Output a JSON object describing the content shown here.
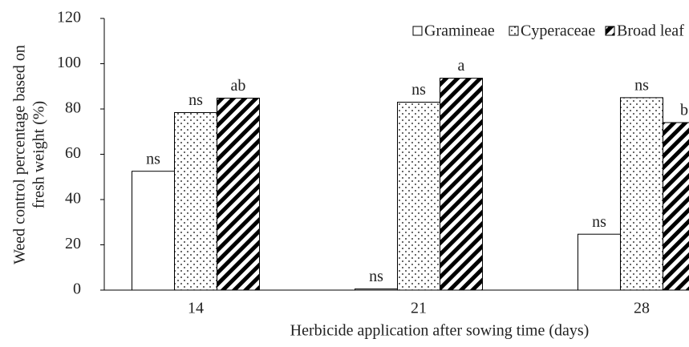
{
  "chart_data": {
    "type": "bar",
    "xlabel": "Herbicide application after sowing time (days)",
    "ylabel": [
      "Weed control percentage based on",
      "fresh weight (%)"
    ],
    "categories": [
      "14",
      "21",
      "28"
    ],
    "series": [
      {
        "name": "Gramineae",
        "color": "#000000",
        "pattern": "none",
        "values": [
          52.5,
          0.5,
          24.7
        ],
        "annotations": [
          "ns",
          "ns",
          "ns"
        ]
      },
      {
        "name": "Cyperaceae",
        "color": "#000000",
        "pattern": "dots",
        "values": [
          78.4,
          83,
          85
        ],
        "annotations": [
          "ns",
          "ns",
          "ns"
        ]
      },
      {
        "name": "Broad leaf",
        "color": "#000000",
        "pattern": "stripes",
        "values": [
          84.8,
          93.6,
          74
        ],
        "annotations": [
          "ab",
          "a",
          "b"
        ]
      }
    ],
    "ylim": [
      0,
      120
    ],
    "yticks": [
      0,
      20,
      40,
      60,
      80,
      100,
      120
    ],
    "legend": "top-right",
    "grid": false
  }
}
